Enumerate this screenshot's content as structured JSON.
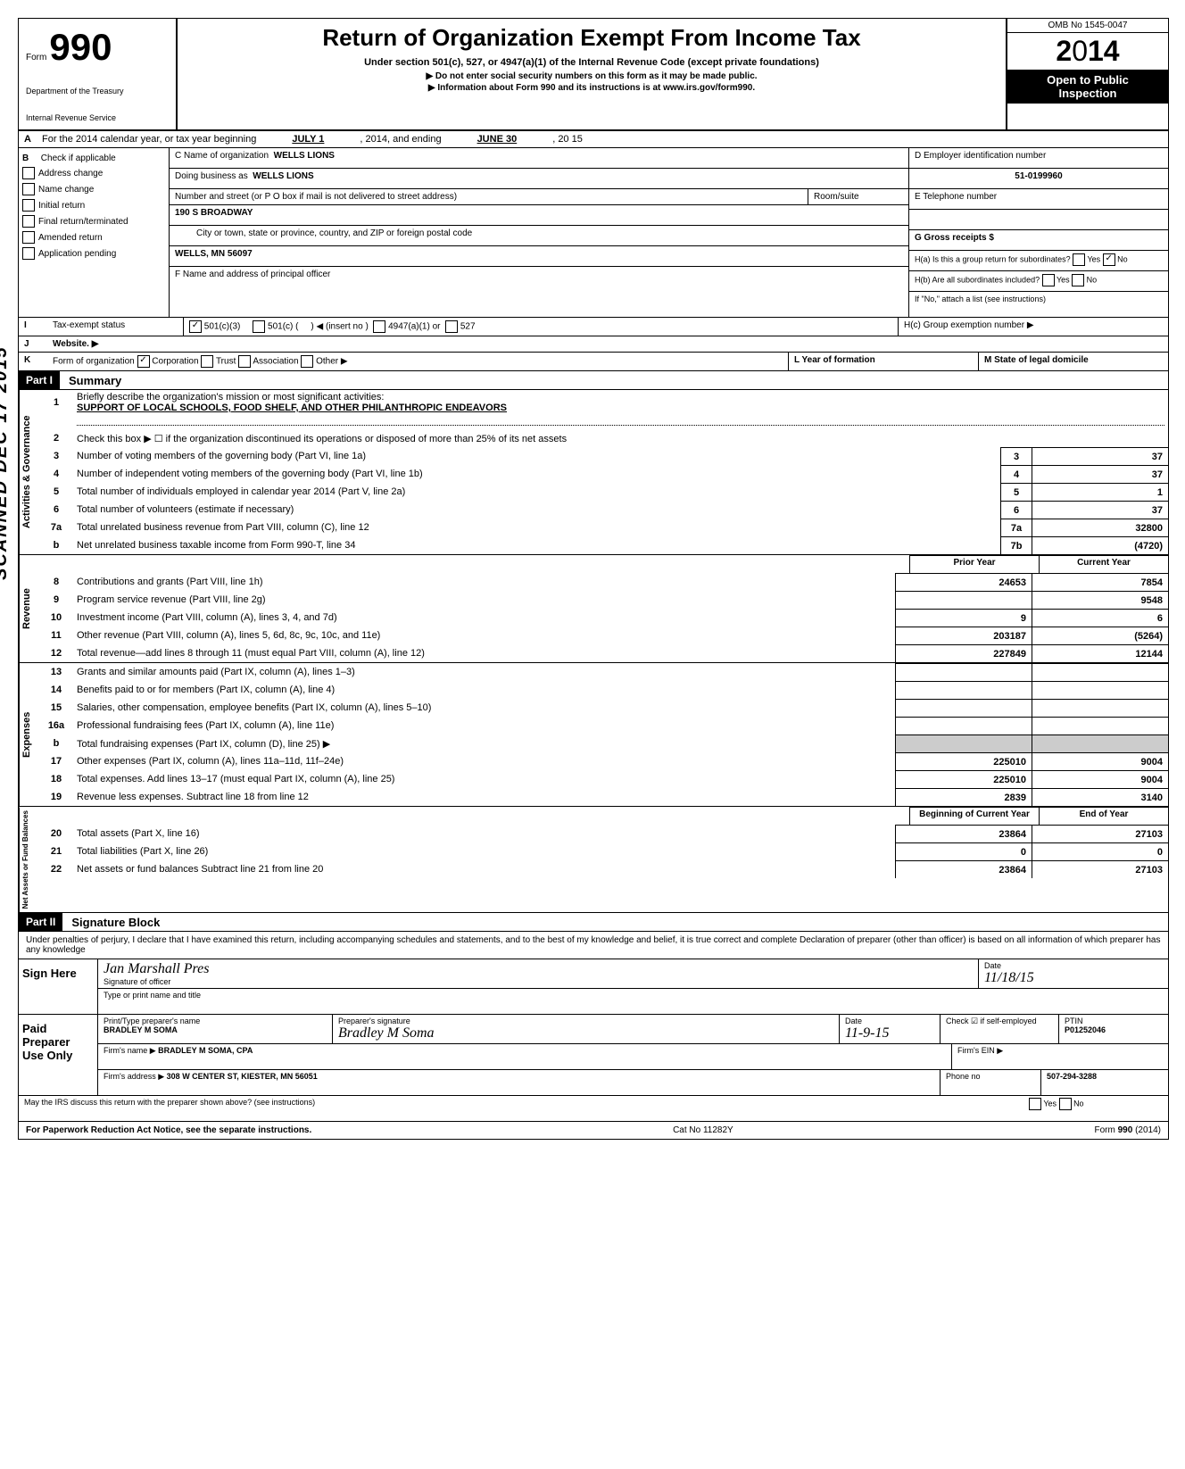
{
  "header": {
    "form_label": "Form",
    "form_number": "990",
    "dept1": "Department of the Treasury",
    "dept2": "Internal Revenue Service",
    "title": "Return of Organization Exempt From Income Tax",
    "subtitle": "Under section 501(c), 527, or 4947(a)(1) of the Internal Revenue Code (except private foundations)",
    "warning": "▶ Do not enter social security numbers on this form as it may be made public.",
    "info": "▶ Information about Form 990 and its instructions is at www.irs.gov/form990.",
    "omb": "OMB No 1545-0047",
    "year": "2014",
    "open": "Open to Public",
    "inspection": "Inspection"
  },
  "row_a": {
    "label": "A",
    "text": "For the 2014 calendar year, or tax year beginning",
    "begin": "JULY 1",
    "year1": ", 2014, and ending",
    "end": "JUNE 30",
    "year2": ", 20  15"
  },
  "section_b": {
    "b_label": "B",
    "check_label": "Check if applicable",
    "checks": [
      "Address change",
      "Name change",
      "Initial return",
      "Final return/terminated",
      "Amended return",
      "Application pending"
    ],
    "c_label": "C Name of organization",
    "c_value": "WELLS LIONS",
    "dba_label": "Doing business as",
    "dba_value": "WELLS LIONS",
    "street_label": "Number and street (or P O  box if mail is not delivered to street address)",
    "room_label": "Room/suite",
    "street_value": "190 S BROADWAY",
    "city_label": "City or town, state or province, country, and ZIP or foreign postal code",
    "city_value": "WELLS, MN 56097",
    "f_label": "F Name and address of principal officer",
    "d_label": "D Employer identification number",
    "d_value": "51-0199960",
    "e_label": "E Telephone number",
    "g_label": "G Gross receipts $",
    "ha_label": "H(a) Is this a group return for subordinates?",
    "hb_label": "H(b) Are all subordinates included?",
    "h_note": "If \"No,\" attach a list  (see instructions)",
    "hc_label": "H(c) Group exemption number ▶",
    "yes": "Yes",
    "no": "No"
  },
  "status": {
    "i_label": "I",
    "tax_exempt": "Tax-exempt status",
    "opt1": "501(c)(3)",
    "opt2": "501(c) (",
    "insert": ") ◀ (insert no )",
    "opt3": "4947(a)(1) or",
    "opt4": "527",
    "j_label": "J",
    "website": "Website. ▶",
    "k_label": "K",
    "form_org": "Form of organization",
    "corp": "Corporation",
    "trust": "Trust",
    "assoc": "Association",
    "other": "Other ▶",
    "l_label": "L Year of formation",
    "m_label": "M State of legal domicile"
  },
  "part1": {
    "label": "Part I",
    "title": "Summary",
    "line1_num": "1",
    "line1": "Briefly describe the organization's mission or most significant activities:",
    "line1_val": "SUPPORT OF LOCAL SCHOOLS, FOOD SHELF, AND OTHER PHILANTHROPIC ENDEAVORS",
    "line2_num": "2",
    "line2": "Check this box ▶ ☐ if the organization discontinued its operations or disposed of more than 25% of its net assets",
    "gov_label": "Activities & Governance",
    "rev_label": "Revenue",
    "exp_label": "Expenses",
    "net_label": "Net Assets or\nFund Balances",
    "lines_gov": [
      {
        "num": "3",
        "text": "Number of voting members of the governing body (Part VI, line 1a)",
        "box": "3",
        "val": "37"
      },
      {
        "num": "4",
        "text": "Number of independent voting members of the governing body (Part VI, line 1b)",
        "box": "4",
        "val": "37"
      },
      {
        "num": "5",
        "text": "Total number of individuals employed in calendar year 2014 (Part V, line 2a)",
        "box": "5",
        "val": "1"
      },
      {
        "num": "6",
        "text": "Total number of volunteers (estimate if necessary)",
        "box": "6",
        "val": "37"
      },
      {
        "num": "7a",
        "text": "Total unrelated business revenue from Part VIII, column (C), line 12",
        "box": "7a",
        "val": "32800"
      },
      {
        "num": "b",
        "text": "Net unrelated business taxable income from Form 990-T, line 34",
        "box": "7b",
        "val": "(4720)"
      }
    ],
    "prior_year": "Prior Year",
    "current_year": "Current Year",
    "lines_rev": [
      {
        "num": "8",
        "text": "Contributions and grants (Part VIII, line 1h)",
        "prior": "24653",
        "curr": "7854"
      },
      {
        "num": "9",
        "text": "Program service revenue (Part VIII, line 2g)",
        "prior": "",
        "curr": "9548"
      },
      {
        "num": "10",
        "text": "Investment income (Part VIII, column (A), lines 3, 4, and 7d)",
        "prior": "9",
        "curr": "6"
      },
      {
        "num": "11",
        "text": "Other revenue (Part VIII, column (A), lines 5, 6d, 8c, 9c, 10c, and 11e)",
        "prior": "203187",
        "curr": "(5264)"
      },
      {
        "num": "12",
        "text": "Total revenue—add lines 8 through 11 (must equal Part VIII, column (A), line 12)",
        "prior": "227849",
        "curr": "12144"
      }
    ],
    "lines_exp": [
      {
        "num": "13",
        "text": "Grants and similar amounts paid (Part IX, column (A), lines 1–3)",
        "prior": "",
        "curr": ""
      },
      {
        "num": "14",
        "text": "Benefits paid to or for members (Part IX, column (A), line 4)",
        "prior": "",
        "curr": ""
      },
      {
        "num": "15",
        "text": "Salaries, other compensation, employee benefits (Part IX, column (A), lines 5–10)",
        "prior": "",
        "curr": ""
      },
      {
        "num": "16a",
        "text": "Professional fundraising fees (Part IX, column (A),  line 11e)",
        "prior": "",
        "curr": ""
      },
      {
        "num": "b",
        "text": "Total fundraising expenses (Part IX, column (D), line 25) ▶",
        "prior": "shaded",
        "curr": "shaded"
      },
      {
        "num": "17",
        "text": "Other expenses (Part IX, column (A), lines 11a–11d, 11f–24e)",
        "prior": "225010",
        "curr": "9004"
      },
      {
        "num": "18",
        "text": "Total expenses. Add lines 13–17 (must equal Part IX, column (A), line 25)",
        "prior": "225010",
        "curr": "9004"
      },
      {
        "num": "19",
        "text": "Revenue less expenses. Subtract line 18 from line 12",
        "prior": "2839",
        "curr": "3140"
      }
    ],
    "begin_year": "Beginning of Current Year",
    "end_year": "End of Year",
    "lines_net": [
      {
        "num": "20",
        "text": "Total assets (Part X, line 16)",
        "prior": "23864",
        "curr": "27103"
      },
      {
        "num": "21",
        "text": "Total liabilities (Part X, line 26)",
        "prior": "0",
        "curr": "0"
      },
      {
        "num": "22",
        "text": "Net assets or fund balances  Subtract line 21 from line 20",
        "prior": "23864",
        "curr": "27103"
      }
    ]
  },
  "part2": {
    "label": "Part II",
    "title": "Signature Block",
    "declaration": "Under penalties of perjury, I declare that I have examined this return, including accompanying schedules and statements, and to the best of my knowledge  and belief, it is true  correct  and complete  Declaration of preparer (other than officer) is based on all information of which preparer has any knowledge",
    "sign_here": "Sign Here",
    "sig_officer": "Signature of officer",
    "date_label": "Date",
    "date_val": "11/18/15",
    "type_name": "Type or print name and title",
    "paid_prep": "Paid Preparer Use Only",
    "prep_name_label": "Print/Type preparer's name",
    "prep_name": "BRADLEY M SOMA",
    "prep_sig_label": "Preparer's signature",
    "prep_date": "11-9-15",
    "check_if": "Check ☑ if self-employed",
    "ptin_label": "PTIN",
    "ptin": "P01252046",
    "firm_name_label": "Firm's name ▶",
    "firm_name": "BRADLEY M SOMA, CPA",
    "firm_ein_label": "Firm's EIN ▶",
    "firm_addr_label": "Firm's address ▶",
    "firm_addr": "308 W CENTER ST, KIESTER, MN 56051",
    "phone_label": "Phone no",
    "phone": "507-294-3288",
    "discuss": "May the IRS discuss this return with the preparer shown above? (see instructions)"
  },
  "footer": {
    "paperwork": "For Paperwork Reduction Act Notice, see the separate instructions.",
    "cat": "Cat  No  11282Y",
    "form": "Form 990 (2014)"
  },
  "stamp": "SCANNED DEC 17 2015"
}
